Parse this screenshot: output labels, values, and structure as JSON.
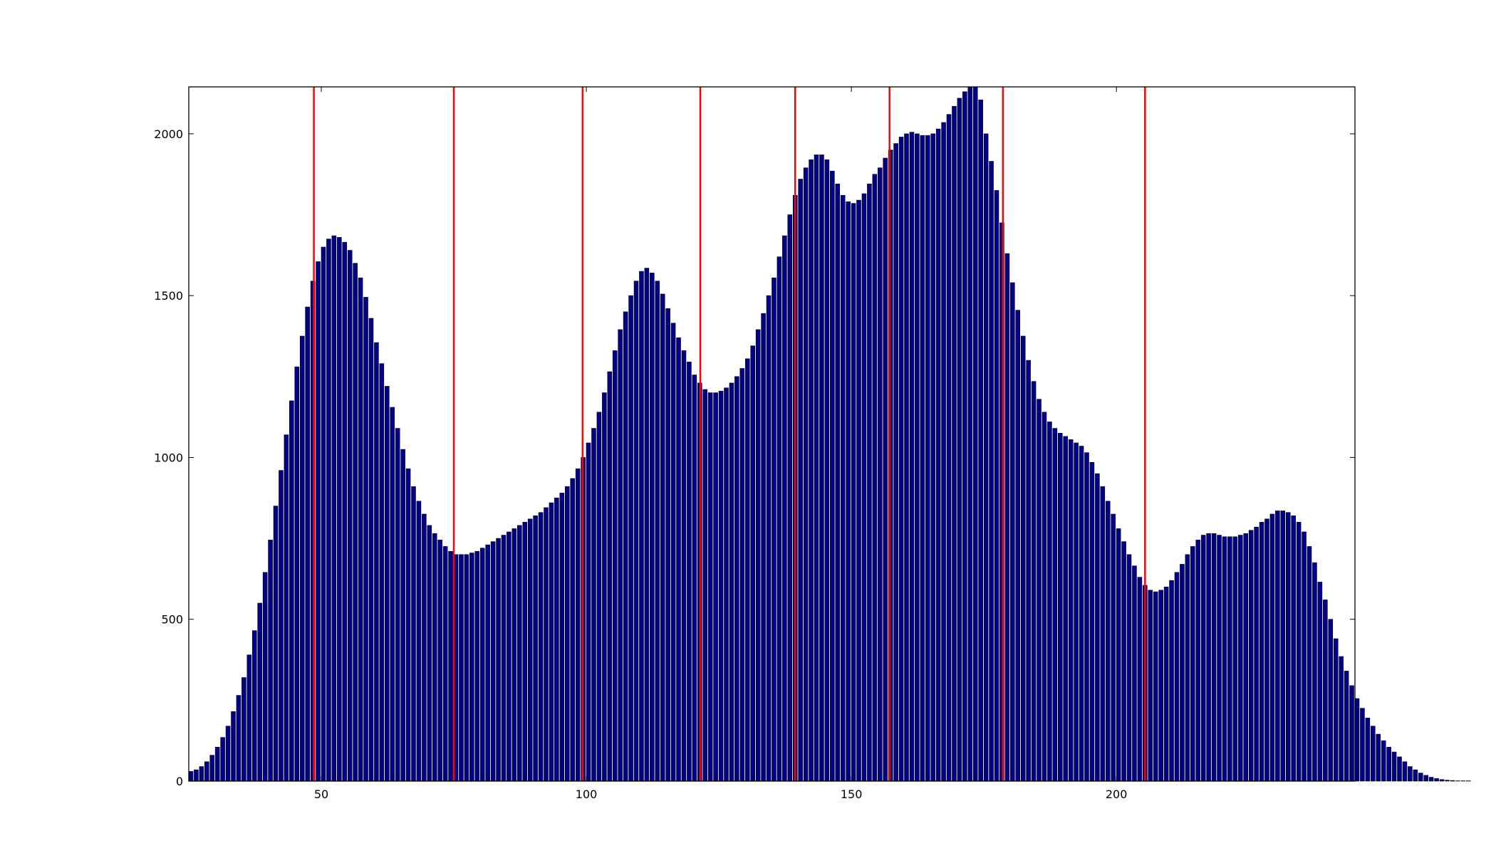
{
  "chart_data": {
    "type": "bar",
    "title": "",
    "xlabel": "",
    "ylabel": "",
    "xlim": [
      25,
      245
    ],
    "ylim": [
      0,
      2145
    ],
    "bar_width": 0.8,
    "grid": false,
    "x_ticks": [
      50,
      100,
      150,
      200
    ],
    "x_tick_labels": [
      "50",
      "100",
      "150",
      "200"
    ],
    "y_ticks": [
      0,
      500,
      1000,
      1500,
      2000
    ],
    "y_tick_labels": [
      "0",
      "500",
      "1000",
      "1500",
      "2000"
    ],
    "bar_color": "#00008b",
    "line_color": "#ff0000",
    "x_start": 25,
    "values": [
      30,
      35,
      45,
      60,
      80,
      105,
      135,
      170,
      215,
      265,
      320,
      390,
      465,
      550,
      645,
      745,
      850,
      960,
      1070,
      1175,
      1280,
      1375,
      1465,
      1545,
      1605,
      1650,
      1675,
      1685,
      1680,
      1665,
      1640,
      1600,
      1555,
      1495,
      1430,
      1355,
      1290,
      1220,
      1155,
      1090,
      1025,
      965,
      910,
      865,
      825,
      790,
      765,
      745,
      725,
      710,
      700,
      700,
      700,
      705,
      710,
      720,
      730,
      740,
      750,
      760,
      770,
      780,
      790,
      800,
      810,
      820,
      830,
      845,
      860,
      875,
      890,
      910,
      935,
      965,
      1000,
      1045,
      1090,
      1140,
      1200,
      1265,
      1330,
      1395,
      1450,
      1500,
      1545,
      1575,
      1585,
      1570,
      1545,
      1505,
      1460,
      1415,
      1370,
      1330,
      1295,
      1255,
      1230,
      1210,
      1200,
      1200,
      1205,
      1215,
      1230,
      1250,
      1275,
      1305,
      1345,
      1395,
      1445,
      1500,
      1555,
      1620,
      1685,
      1750,
      1810,
      1860,
      1895,
      1920,
      1935,
      1935,
      1920,
      1885,
      1845,
      1810,
      1790,
      1785,
      1795,
      1815,
      1845,
      1875,
      1895,
      1925,
      1950,
      1970,
      1990,
      2000,
      2005,
      2000,
      1995,
      1995,
      2000,
      2015,
      2035,
      2060,
      2085,
      2110,
      2130,
      2145,
      2145,
      2105,
      2000,
      1915,
      1825,
      1725,
      1630,
      1540,
      1455,
      1375,
      1300,
      1235,
      1180,
      1140,
      1110,
      1090,
      1075,
      1065,
      1055,
      1045,
      1035,
      1015,
      985,
      950,
      910,
      865,
      825,
      780,
      740,
      700,
      665,
      630,
      605,
      590,
      585,
      590,
      600,
      620,
      645,
      670,
      700,
      725,
      745,
      760,
      765,
      765,
      760,
      755,
      755,
      755,
      760,
      765,
      775,
      785,
      800,
      810,
      825,
      835,
      835,
      830,
      820,
      800,
      770,
      725,
      675,
      615,
      560,
      500,
      440,
      385,
      340,
      295,
      255,
      225,
      195,
      170,
      145,
      125,
      105,
      90,
      75,
      60,
      45,
      35,
      25,
      18,
      12,
      8,
      5,
      3,
      2,
      1,
      1,
      1,
      0,
      0,
      0
    ],
    "vertical_lines": [
      48.6,
      75.0,
      99.3,
      121.5,
      139.4,
      157.2,
      178.6,
      205.4
    ]
  }
}
